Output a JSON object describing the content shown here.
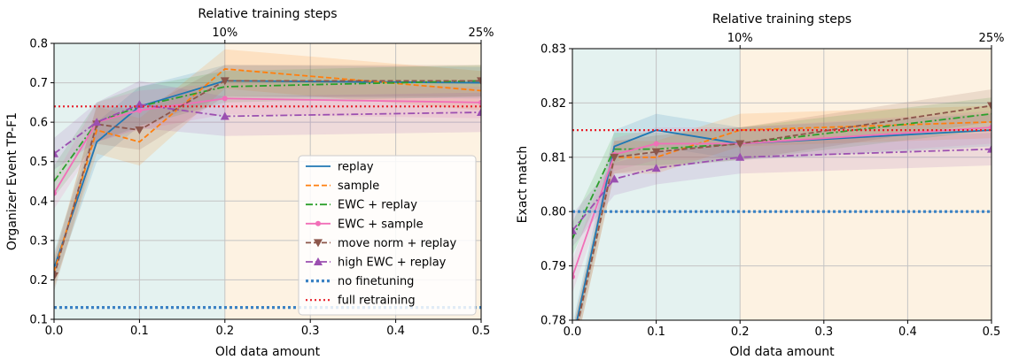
{
  "colors": {
    "replay": "#1f77b4",
    "sample": "#ff7f0e",
    "ewc_replay": "#2ca02c",
    "ewc_sample": "#f16fb8",
    "move_norm_replay": "#8c564b",
    "high_ewc_replay": "#9b4fb0",
    "no_finetuning": "#3b82c4",
    "full_retraining": "#e8202a",
    "region_left": "#e4f2f0",
    "region_right": "#fdf2e2"
  },
  "chart_data": [
    {
      "type": "line",
      "xlabel": "Old data amount",
      "ylabel": "Organizer Event TP-F1",
      "top_axis_label": "Relative training steps",
      "top_ticks": [
        {
          "x": 0.2,
          "label": "10%"
        },
        {
          "x": 0.5,
          "label": "25%"
        }
      ],
      "xlim": [
        0.0,
        0.5
      ],
      "ylim": [
        0.1,
        0.8
      ],
      "xticks": [
        "0.0",
        "0.1",
        "0.2",
        "0.3",
        "0.4",
        "0.5"
      ],
      "yticks": [
        "0.1",
        "0.2",
        "0.3",
        "0.4",
        "0.5",
        "0.6",
        "0.7",
        "0.8"
      ],
      "grid": true,
      "legend_position": "lower-right",
      "series": [
        {
          "key": "replay",
          "name": "replay",
          "style": "solid",
          "marker": "none",
          "x": [
            0.0,
            0.05,
            0.1,
            0.2,
            0.5
          ],
          "y": [
            0.23,
            0.55,
            0.64,
            0.705,
            0.7
          ],
          "band": [
            0.04,
            0.05,
            0.05,
            0.04,
            0.04
          ]
        },
        {
          "key": "sample",
          "name": "sample",
          "style": "dashed",
          "marker": "none",
          "x": [
            0.0,
            0.05,
            0.1,
            0.2,
            0.5
          ],
          "y": [
            0.22,
            0.58,
            0.55,
            0.735,
            0.68
          ],
          "band": [
            0.04,
            0.06,
            0.06,
            0.05,
            0.05
          ]
        },
        {
          "key": "ewc_replay",
          "name": "EWC + replay",
          "style": "dashdot",
          "marker": "none",
          "x": [
            0.0,
            0.05,
            0.1,
            0.2,
            0.5
          ],
          "y": [
            0.45,
            0.6,
            0.64,
            0.69,
            0.705
          ],
          "band": [
            0.04,
            0.05,
            0.05,
            0.04,
            0.04
          ]
        },
        {
          "key": "ewc_sample",
          "name": "EWC + sample",
          "style": "solid",
          "marker": "dot",
          "x": [
            0.0,
            0.05,
            0.1,
            0.2,
            0.5
          ],
          "y": [
            0.42,
            0.6,
            0.63,
            0.66,
            0.65
          ],
          "band": [
            0.04,
            0.05,
            0.05,
            0.04,
            0.04
          ]
        },
        {
          "key": "move_norm_replay",
          "name": "move norm + replay",
          "style": "dashed",
          "marker": "triangle-down",
          "x": [
            0.0,
            0.05,
            0.1,
            0.2,
            0.5
          ],
          "y": [
            0.21,
            0.595,
            0.58,
            0.705,
            0.705
          ],
          "band": [
            0.04,
            0.05,
            0.05,
            0.04,
            0.04
          ]
        },
        {
          "key": "high_ewc_replay",
          "name": "high EWC + replay",
          "style": "dashdot",
          "marker": "triangle-up",
          "x": [
            0.0,
            0.05,
            0.1,
            0.2,
            0.5
          ],
          "y": [
            0.52,
            0.6,
            0.645,
            0.615,
            0.625
          ],
          "band": [
            0.04,
            0.05,
            0.06,
            0.05,
            0.05
          ]
        },
        {
          "key": "no_finetuning",
          "name": "no finetuning",
          "style": "dotted-thick",
          "marker": "none",
          "x": [
            0.0,
            0.5
          ],
          "y": [
            0.13,
            0.13
          ],
          "band": null
        },
        {
          "key": "full_retraining",
          "name": "full retraining",
          "style": "dotted",
          "marker": "none",
          "x": [
            0.0,
            0.5
          ],
          "y": [
            0.64,
            0.64
          ],
          "band": null
        }
      ]
    },
    {
      "type": "line",
      "xlabel": "Old data amount",
      "ylabel": "Exact match",
      "top_axis_label": "Relative training steps",
      "top_ticks": [
        {
          "x": 0.2,
          "label": "10%"
        },
        {
          "x": 0.5,
          "label": "25%"
        }
      ],
      "xlim": [
        0.0,
        0.5
      ],
      "ylim": [
        0.78,
        0.83
      ],
      "xticks": [
        "0.0",
        "0.1",
        "0.2",
        "0.3",
        "0.4",
        "0.5"
      ],
      "yticks": [
        "0.78",
        "0.79",
        "0.80",
        "0.81",
        "0.82",
        "0.83"
      ],
      "grid": true,
      "legend_position": "none",
      "series": [
        {
          "key": "replay",
          "name": "replay",
          "style": "solid",
          "marker": "none",
          "x": [
            0.0,
            0.05,
            0.1,
            0.2,
            0.5
          ],
          "y": [
            0.776,
            0.812,
            0.815,
            0.8125,
            0.815
          ],
          "band": [
            0.003,
            0.003,
            0.003,
            0.003,
            0.003
          ]
        },
        {
          "key": "sample",
          "name": "sample",
          "style": "dashed",
          "marker": "none",
          "x": [
            0.0,
            0.05,
            0.1,
            0.2,
            0.5
          ],
          "y": [
            0.775,
            0.81,
            0.81,
            0.815,
            0.8165
          ],
          "band": [
            0.003,
            0.003,
            0.003,
            0.003,
            0.003
          ]
        },
        {
          "key": "ewc_replay",
          "name": "EWC + replay",
          "style": "dashdot",
          "marker": "none",
          "x": [
            0.0,
            0.05,
            0.1,
            0.2,
            0.5
          ],
          "y": [
            0.795,
            0.8115,
            0.8115,
            0.8125,
            0.818
          ],
          "band": [
            0.003,
            0.003,
            0.003,
            0.003,
            0.003
          ]
        },
        {
          "key": "ewc_sample",
          "name": "EWC + sample",
          "style": "solid",
          "marker": "dot",
          "x": [
            0.0,
            0.05,
            0.1,
            0.2,
            0.5
          ],
          "y": [
            0.788,
            0.8105,
            0.8125,
            0.8125,
            0.8155
          ],
          "band": [
            0.003,
            0.003,
            0.003,
            0.003,
            0.003
          ]
        },
        {
          "key": "move_norm_replay",
          "name": "move norm + replay",
          "style": "dashed",
          "marker": "triangle-down",
          "x": [
            0.0,
            0.05,
            0.1,
            0.2,
            0.5
          ],
          "y": [
            0.775,
            0.81,
            0.811,
            0.8125,
            0.8195
          ],
          "band": [
            0.003,
            0.003,
            0.003,
            0.003,
            0.003
          ]
        },
        {
          "key": "high_ewc_replay",
          "name": "high EWC + replay",
          "style": "dashdot",
          "marker": "triangle-up",
          "x": [
            0.0,
            0.05,
            0.1,
            0.2,
            0.5
          ],
          "y": [
            0.7965,
            0.806,
            0.808,
            0.81,
            0.8115
          ],
          "band": [
            0.003,
            0.003,
            0.003,
            0.003,
            0.003
          ]
        },
        {
          "key": "no_finetuning",
          "name": "no finetuning",
          "style": "dotted-thick",
          "marker": "none",
          "x": [
            0.0,
            0.5
          ],
          "y": [
            0.8,
            0.8
          ],
          "band": null
        },
        {
          "key": "full_retraining",
          "name": "full retraining",
          "style": "dotted",
          "marker": "none",
          "x": [
            0.0,
            0.5
          ],
          "y": [
            0.815,
            0.815
          ],
          "band": null
        }
      ]
    }
  ]
}
